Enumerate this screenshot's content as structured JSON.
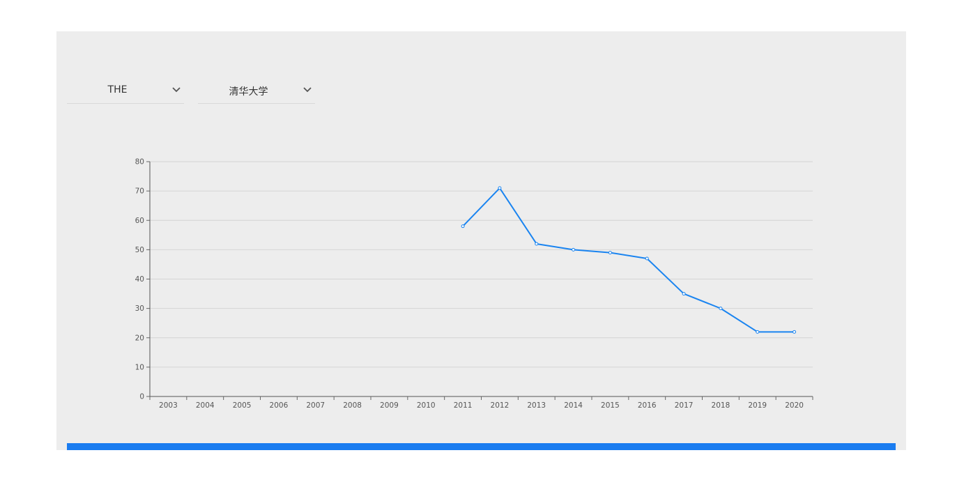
{
  "filters": {
    "ranking": "THE",
    "university": "清华大学"
  },
  "chart_data": {
    "type": "line",
    "x": [
      "2003",
      "2004",
      "2005",
      "2006",
      "2007",
      "2008",
      "2009",
      "2010",
      "2011",
      "2012",
      "2013",
      "2014",
      "2015",
      "2016",
      "2017",
      "2018",
      "2019",
      "2020"
    ],
    "series": [
      {
        "values": [
          null,
          null,
          null,
          null,
          null,
          null,
          null,
          null,
          58,
          71,
          52,
          50,
          49,
          47,
          35,
          30,
          22,
          22
        ],
        "color": "#1a84f0"
      }
    ],
    "y_ticks": [
      "0",
      "10",
      "20",
      "30",
      "40",
      "50",
      "60",
      "70",
      "80"
    ],
    "ylim": [
      0,
      80
    ],
    "grid": true,
    "title": "",
    "xlabel": "",
    "ylabel": ""
  }
}
